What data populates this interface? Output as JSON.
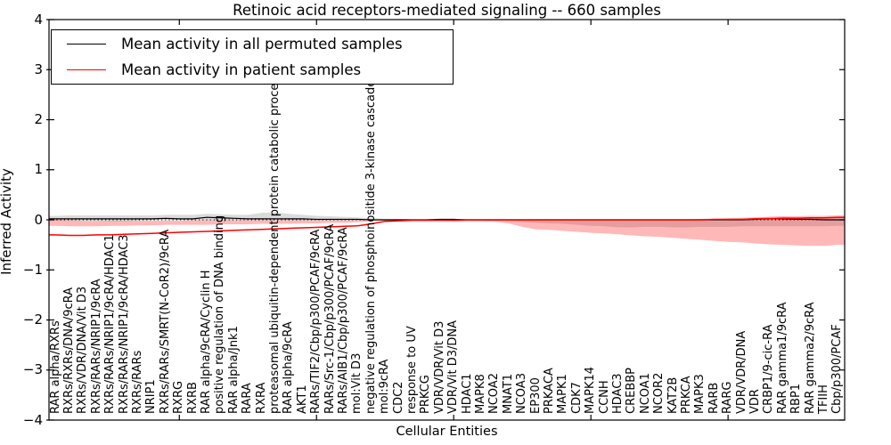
{
  "chart_data": {
    "type": "line",
    "title": "Retinoic acid receptors-mediated signaling -- 660 samples",
    "xlabel": "Cellular Entities",
    "ylabel": "Inferred Activity",
    "ylim": [
      -4,
      4
    ],
    "yticks": [
      4,
      3,
      2,
      1,
      0,
      -1,
      -2,
      -3,
      -4
    ],
    "xtick_major_indices": [
      9,
      19,
      29,
      39,
      49
    ],
    "grid": false,
    "legend_position": "upper left",
    "zero_line": {
      "y": 0,
      "style": "dotted",
      "color": "#000000"
    },
    "categories": [
      "RAR alpha/RXRs",
      "RXRs/RXRs/DNA/9cRA",
      "RXRs/VDR/DNA/Vit D3",
      "RXRs/RARs/NRIP1/9cRA",
      "RXRs/RARs/NRIP1/9cRA/HDAC1",
      "RXRs/RARs/NRIP1/9cRA/HDAC3",
      "RXRs/RARs",
      "NRIP1",
      "RXRs/RARs/SMRT(N-CoR2)/9cRA",
      "RXRG",
      "RXRB",
      "RAR alpha/9cRA/Cyclin H",
      "positive regulation of DNA binding",
      "RAR alpha/Jnk1",
      "RARA",
      "RXRA",
      "proteasomal ubiquitin-dependent protein catabolic process",
      "RAR alpha/9cRA",
      "AKT1",
      "RARs/TIF2/Cbp/p300/PCAF/9cRA",
      "RARs/Src-1/Cbp/p300/PCAF/9cRA",
      "RARs/AIB1/Cbp/p300/PCAF/9cRA",
      "mol:Vit D3",
      "negative regulation of phosphoinositide 3-kinase cascade",
      "mol:9cRA",
      "CDC2",
      "response to UV",
      "PRKCG",
      "VDR/VDR/Vit D3",
      "VDR/Vit D3/DNA",
      "HDAC1",
      "MAPK8",
      "NCOA2",
      "MNAT1",
      "NCOA3",
      "EP300",
      "PRKACA",
      "MAPK1",
      "CDK7",
      "MAPK14",
      "CCNH",
      "HDAC3",
      "CREBBP",
      "NCOA1",
      "NCOR2",
      "KAT2B",
      "PRKCA",
      "MAPK3",
      "RARB",
      "RARG",
      "VDR/VDR/DNA",
      "VDR",
      "CRBP1/9-cic-RA",
      "RAR gamma1/9cRA",
      "RBP1",
      "RAR gamma2/9cRA",
      "TFIIH",
      "Cbp/p300/PCAF"
    ],
    "series": [
      {
        "name": "Mean activity in all permuted samples",
        "color": "#000000",
        "line_width": 1.2,
        "band_color": "rgba(0,0,0,0.14)",
        "values": [
          0.02,
          0.02,
          0.02,
          0.02,
          0.02,
          0.02,
          0.02,
          0.02,
          0.03,
          0.02,
          0.02,
          0.05,
          0.04,
          0.03,
          0.02,
          0.02,
          0.02,
          0.02,
          0.02,
          0.01,
          0.01,
          0.01,
          0.01,
          0,
          0,
          0,
          0,
          0,
          0.01,
          0.01,
          0,
          0,
          0,
          0,
          0,
          0,
          0,
          0,
          0,
          0,
          0,
          0,
          0,
          0,
          0,
          0,
          0,
          0,
          0,
          0,
          0,
          0.01,
          0.02,
          0.02,
          0.01,
          0.01,
          0,
          0
        ],
        "band_upper": [
          0.08,
          0.09,
          0.09,
          0.09,
          0.09,
          0.09,
          0.09,
          0.09,
          0.1,
          0.1,
          0.1,
          0.12,
          0.11,
          0.1,
          0.1,
          0.14,
          0.15,
          0.12,
          0.1,
          0.08,
          0.07,
          0.06,
          0.05,
          0.03,
          0.02,
          0.02,
          0.01,
          0.01,
          0.02,
          0.02,
          0.01,
          0.01,
          0.01,
          0.01,
          0.01,
          0.01,
          0.01,
          0.01,
          0.01,
          0.01,
          0.01,
          0.01,
          0.01,
          0.01,
          0.01,
          0.01,
          0.01,
          0.01,
          0.01,
          0.01,
          0.02,
          0.04,
          0.06,
          0.06,
          0.05,
          0.04,
          0.03,
          0.03
        ],
        "band_lower": [
          -0.12,
          -0.13,
          -0.13,
          -0.13,
          -0.13,
          -0.13,
          -0.13,
          -0.13,
          -0.14,
          -0.14,
          -0.14,
          -0.15,
          -0.15,
          -0.14,
          -0.14,
          -0.15,
          -0.15,
          -0.13,
          -0.12,
          -0.1,
          -0.08,
          -0.07,
          -0.06,
          -0.04,
          -0.02,
          -0.02,
          -0.01,
          -0.01,
          -0.02,
          -0.02,
          -0.01,
          -0.01,
          -0.01,
          -0.01,
          -0.01,
          -0.01,
          -0.01,
          -0.01,
          -0.01,
          -0.01,
          -0.01,
          -0.01,
          -0.01,
          -0.01,
          -0.01,
          -0.01,
          -0.01,
          -0.01,
          -0.01,
          -0.01,
          -0.01,
          -0.02,
          -0.03,
          -0.03,
          -0.02,
          -0.02,
          -0.02,
          -0.02
        ]
      },
      {
        "name": "Mean activity in patient samples",
        "color": "#ff0000",
        "line_width": 1.5,
        "band_color": "rgba(255,0,0,0.28)",
        "values": [
          -0.3,
          -0.31,
          -0.31,
          -0.3,
          -0.3,
          -0.29,
          -0.28,
          -0.27,
          -0.26,
          -0.25,
          -0.24,
          -0.23,
          -0.22,
          -0.21,
          -0.2,
          -0.19,
          -0.18,
          -0.17,
          -0.16,
          -0.15,
          -0.14,
          -0.13,
          -0.12,
          -0.08,
          -0.03,
          -0.02,
          -0.01,
          -0.01,
          -0.01,
          -0.01,
          0,
          0,
          0,
          0,
          0,
          0,
          0,
          0,
          0,
          0,
          0,
          0,
          0,
          0,
          0,
          0,
          0,
          0,
          0.01,
          0.01,
          0.01,
          0.02,
          0.02,
          0.03,
          0.03,
          0.04,
          0.04,
          0.05
        ],
        "band_upper": [
          -0.12,
          -0.13,
          -0.13,
          -0.13,
          -0.12,
          -0.12,
          -0.11,
          -0.11,
          -0.1,
          -0.1,
          -0.1,
          -0.1,
          -0.09,
          -0.09,
          -0.09,
          -0.08,
          -0.08,
          -0.08,
          -0.07,
          -0.07,
          -0.06,
          -0.06,
          -0.05,
          -0.03,
          0,
          0.01,
          0.01,
          0.01,
          0.01,
          0.01,
          0.01,
          0.01,
          0.01,
          0.01,
          0.01,
          0.01,
          0.01,
          0.01,
          0.01,
          0.01,
          0.01,
          0.01,
          0.01,
          0.01,
          0.01,
          0.01,
          0.01,
          0.02,
          0.02,
          0.03,
          0.04,
          0.05,
          0.06,
          0.07,
          0.07,
          0.08,
          0.08,
          0.09
        ],
        "band_lower": [
          -0.5,
          -0.52,
          -0.52,
          -0.51,
          -0.5,
          -0.49,
          -0.47,
          -0.45,
          -0.44,
          -0.42,
          -0.4,
          -0.38,
          -0.36,
          -0.34,
          -0.33,
          -0.31,
          -0.29,
          -0.27,
          -0.26,
          -0.24,
          -0.22,
          -0.2,
          -0.19,
          -0.14,
          -0.07,
          -0.04,
          -0.03,
          -0.03,
          -0.03,
          -0.02,
          -0.02,
          -0.02,
          -0.02,
          -0.02,
          -0.01,
          -0.01,
          -0.01,
          -0.01,
          -0.01,
          -0.01,
          -0.01,
          -0.01,
          -0.01,
          -0.01,
          -0.01,
          -0.01,
          -0.01,
          -0.01,
          -0.02,
          -0.02,
          -0.02,
          -0.02,
          -0.02,
          -0.02,
          -0.02,
          -0.02,
          -0.01,
          0
        ]
      }
    ]
  }
}
